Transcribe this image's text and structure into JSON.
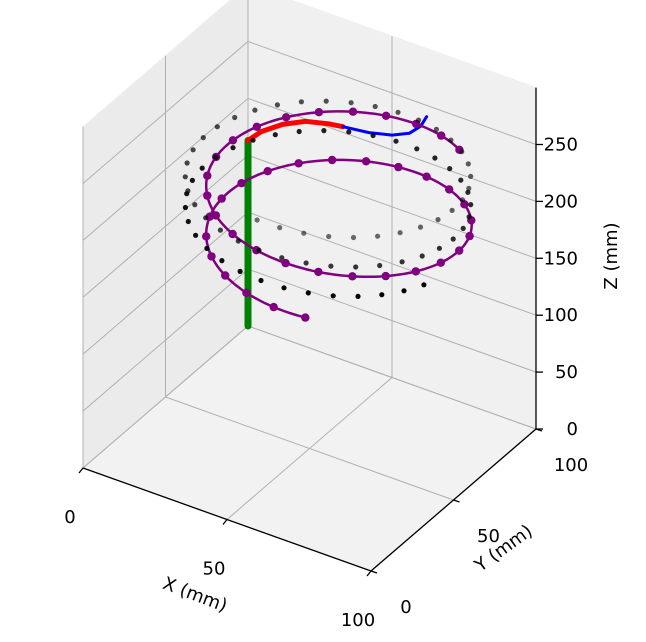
{
  "chart_data": {
    "type": "scatter",
    "title": "",
    "xlabel": "X (mm)",
    "ylabel": "Y (mm)",
    "zlabel": "Z (mm)",
    "xlim": [
      0,
      100
    ],
    "ylim": [
      0,
      100
    ],
    "zlim": [
      0,
      250
    ],
    "x_ticks": [
      "0",
      "50",
      "100"
    ],
    "y_ticks": [
      "0",
      "50",
      "100"
    ],
    "z_ticks": [
      "0",
      "50",
      "100",
      "150",
      "200",
      "250"
    ],
    "grid": true,
    "colors": {
      "segment_1": "#008000",
      "segment_2": "#ff0000",
      "segment_3": "#0000ff",
      "helix": "#800080",
      "helix_points": "#000000",
      "pane": "#f2f2f2",
      "grid": "#b0b0b0"
    },
    "series": [
      {
        "color_key": "segment_1",
        "kind": "line",
        "stroke_width": 7,
        "x": [
          0.0,
          0.0,
          0.0,
          0.0,
          0.0,
          0.0,
          0.0
        ],
        "y": [
          100,
          100,
          100,
          100,
          100,
          100,
          100
        ],
        "z": [
          0,
          30,
          60,
          85,
          110,
          140,
          163
        ]
      },
      {
        "color_key": "segment_2",
        "kind": "line",
        "stroke_width": 5,
        "x": [
          0.0,
          4.6,
          12.0,
          20.0,
          28.0,
          33.0
        ],
        "y": [
          100,
          100,
          100,
          100,
          100,
          100
        ],
        "z": [
          163,
          175,
          188,
          198,
          203,
          205
        ]
      },
      {
        "color_key": "segment_3",
        "kind": "line",
        "stroke_width": 3,
        "x": [
          33.0,
          42.0,
          50.0,
          56.0,
          60.0,
          62.0
        ],
        "y": [
          100,
          100,
          100,
          100,
          100,
          100
        ],
        "z": [
          205,
          208,
          213,
          220,
          230,
          240
        ]
      },
      {
        "color_key": "helix",
        "kind": "helix",
        "center_x": 59.6,
        "center_y": 51.1,
        "radius": 40,
        "z_start": 250,
        "z_end": 180,
        "turns": 1.64,
        "phase_start": 0.955
      },
      {
        "color_key": "helix_points",
        "kind": "points",
        "center_x": 57.0,
        "center_y": 49.0,
        "radius": 43,
        "z_top": 262,
        "z_bottom": 205,
        "turns": 2.2,
        "count": 80
      }
    ]
  }
}
